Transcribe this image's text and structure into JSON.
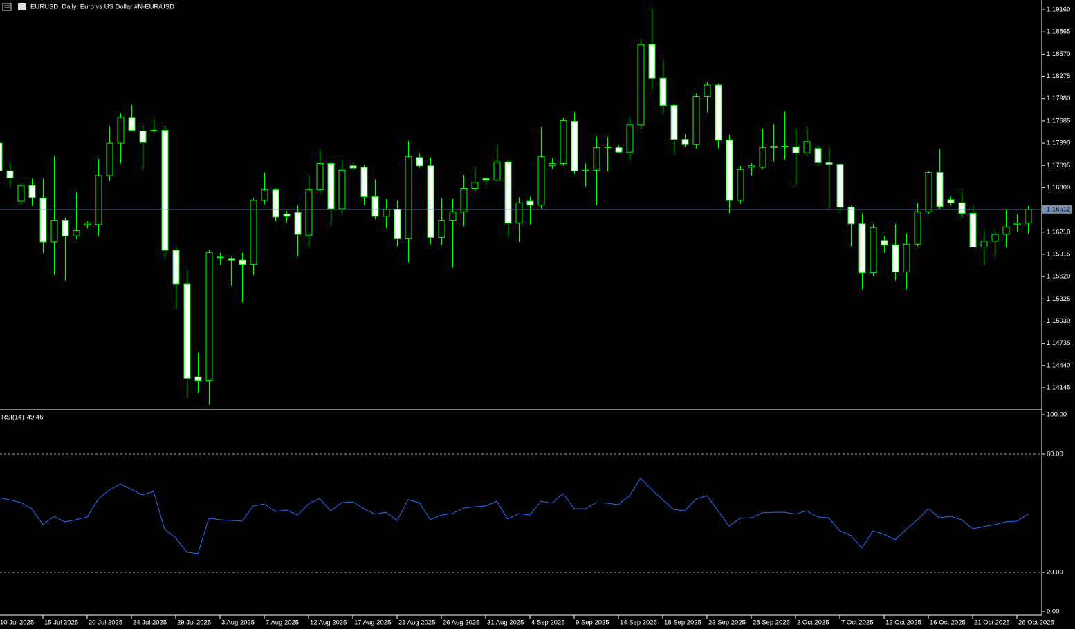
{
  "chart_data": [
    {
      "type": "candlestick",
      "title": "EURUSD, Daily:  Euro vs US Dollar #N-EUR/USD",
      "categories": [
        "10 Jul 2025",
        null,
        null,
        null,
        "15 Jul 2025",
        null,
        null,
        null,
        "20 Jul 2025",
        null,
        null,
        null,
        "24 Jul 2025",
        null,
        null,
        null,
        "29 Jul 2025",
        null,
        null,
        null,
        "3 Aug 2025",
        null,
        null,
        null,
        "7 Aug 2025",
        null,
        null,
        null,
        "12 Aug 2025",
        null,
        null,
        null,
        "17 Aug 2025",
        null,
        null,
        null,
        "21 Aug 2025",
        null,
        null,
        null,
        "26 Aug 2025",
        null,
        null,
        null,
        "31 Aug 2025",
        null,
        null,
        null,
        "4 Sep 2025",
        null,
        null,
        null,
        "9 Sep 2025",
        null,
        null,
        null,
        "14 Sep 2025",
        null,
        null,
        null,
        "18 Sep 2025",
        null,
        null,
        null,
        "23 Sep 2025",
        null,
        null,
        null,
        "28 Sep 2025",
        null,
        null,
        null,
        "2 Oct 2025",
        null,
        null,
        null,
        "7 Oct 2025",
        null,
        null,
        null,
        "12 Oct 2025",
        null,
        null,
        null,
        "16 Oct 2025",
        null,
        null,
        null,
        "21 Oct 2025",
        null,
        null,
        null,
        "26 Oct 2025",
        null
      ],
      "open": [
        1.1739,
        1.1702,
        1.1662,
        1.1683,
        1.1666,
        1.1608,
        1.1636,
        1.1616,
        1.1631,
        1.1631,
        1.1696,
        1.1739,
        1.1773,
        1.1755,
        1.1755,
        1.1756,
        1.1597,
        1.1552,
        1.1429,
        1.1424,
        1.1587,
        1.1586,
        1.1584,
        1.1578,
        1.1663,
        1.1677,
        1.1645,
        1.1647,
        1.1617,
        1.1677,
        1.1712,
        1.1652,
        1.1709,
        1.1707,
        1.1668,
        1.1642,
        1.1651,
        1.1612,
        1.172,
        1.1709,
        1.1614,
        1.1636,
        1.1648,
        1.1679,
        1.1692,
        1.169,
        1.1714,
        1.1633,
        1.1662,
        1.1657,
        1.1709,
        1.1712,
        1.1768,
        1.1702,
        1.1703,
        1.1733,
        1.1733,
        1.1727,
        1.1763,
        1.187,
        1.1825,
        1.1789,
        1.1744,
        1.1737,
        1.1801,
        1.1816,
        1.1743,
        1.1663,
        1.1707,
        1.1707,
        1.1733,
        1.1735,
        1.1734,
        1.1726,
        1.1732,
        1.1713,
        1.1711,
        1.1654,
        1.1632,
        1.1567,
        1.161,
        1.1604,
        1.1568,
        1.1605,
        1.1648,
        1.17,
        1.1664,
        1.166,
        1.1646,
        1.1601,
        1.1609,
        1.1618,
        1.1631,
        1.1633
      ],
      "high": [
        1.1745,
        1.1713,
        1.1686,
        1.1692,
        1.1692,
        1.1722,
        1.164,
        1.1674,
        1.1635,
        1.1718,
        1.1761,
        1.1779,
        1.179,
        1.1763,
        1.1771,
        1.1762,
        1.1601,
        1.1571,
        1.1461,
        1.1597,
        1.1594,
        1.1588,
        1.1594,
        1.1666,
        1.17,
        1.1679,
        1.1649,
        1.1657,
        1.1697,
        1.1731,
        1.1715,
        1.1717,
        1.1713,
        1.171,
        1.1691,
        1.1665,
        1.1663,
        1.1742,
        1.1725,
        1.172,
        1.1666,
        1.1665,
        1.1697,
        1.1708,
        1.1694,
        1.1737,
        1.1716,
        1.1667,
        1.1668,
        1.176,
        1.1719,
        1.1773,
        1.178,
        1.1712,
        1.1748,
        1.1747,
        1.1736,
        1.1773,
        1.1877,
        1.1919,
        1.1849,
        1.1791,
        1.1751,
        1.1805,
        1.182,
        1.1818,
        1.175,
        1.1709,
        1.1712,
        1.1758,
        1.1764,
        1.1781,
        1.1759,
        1.1761,
        1.1736,
        1.1734,
        1.1712,
        1.1657,
        1.1646,
        1.1632,
        1.1616,
        1.1632,
        1.1619,
        1.166,
        1.1702,
        1.1731,
        1.1668,
        1.1674,
        1.1657,
        1.1623,
        1.1623,
        1.1651,
        1.1645,
        1.1656
      ],
      "low": [
        1.17,
        1.1681,
        1.1658,
        1.1656,
        1.1593,
        1.1564,
        1.1557,
        1.1612,
        1.1626,
        1.1616,
        1.1689,
        1.1712,
        1.1755,
        1.1704,
        1.1753,
        1.1586,
        1.1521,
        1.1402,
        1.1408,
        1.1392,
        1.1577,
        1.155,
        1.1528,
        1.1564,
        1.1658,
        1.1635,
        1.1634,
        1.1589,
        1.1601,
        1.1672,
        1.1631,
        1.1645,
        1.1703,
        1.1657,
        1.1638,
        1.1626,
        1.1602,
        1.1581,
        1.1707,
        1.1605,
        1.1604,
        1.1574,
        1.1629,
        1.1674,
        1.1683,
        1.1689,
        1.1614,
        1.1608,
        1.1631,
        1.1652,
        1.1705,
        1.1709,
        1.1698,
        1.1682,
        1.1657,
        1.1701,
        1.1726,
        1.1716,
        1.1757,
        1.181,
        1.1778,
        1.1725,
        1.1734,
        1.1732,
        1.178,
        1.1732,
        1.1646,
        1.1659,
        1.1696,
        1.1705,
        1.1715,
        1.1717,
        1.1684,
        1.1723,
        1.1709,
        1.1653,
        1.1648,
        1.1602,
        1.1545,
        1.1562,
        1.1594,
        1.1557,
        1.1545,
        1.1602,
        1.1645,
        1.1652,
        1.1657,
        1.164,
        1.1601,
        1.1578,
        1.1588,
        1.1601,
        1.1621,
        1.1619
      ],
      "close": [
        1.1702,
        1.1693,
        1.1683,
        1.1667,
        1.1608,
        1.1636,
        1.1616,
        1.1623,
        1.1633,
        1.1696,
        1.1739,
        1.1773,
        1.1756,
        1.174,
        1.1756,
        1.1597,
        1.1552,
        1.1427,
        1.1424,
        1.1594,
        1.1588,
        1.1584,
        1.1578,
        1.1663,
        1.1677,
        1.1641,
        1.1642,
        1.1618,
        1.1677,
        1.1712,
        1.1652,
        1.1703,
        1.1706,
        1.1668,
        1.1642,
        1.1651,
        1.1612,
        1.1721,
        1.1709,
        1.1614,
        1.1636,
        1.1648,
        1.1679,
        1.1687,
        1.169,
        1.1714,
        1.1633,
        1.166,
        1.1657,
        1.1721,
        1.1712,
        1.1769,
        1.1702,
        1.1703,
        1.1733,
        1.1734,
        1.1727,
        1.1763,
        1.187,
        1.1825,
        1.1789,
        1.1744,
        1.1737,
        1.1801,
        1.1816,
        1.1743,
        1.1663,
        1.1704,
        1.1709,
        1.1733,
        1.1735,
        1.1734,
        1.1726,
        1.1741,
        1.1713,
        1.1711,
        1.1654,
        1.1632,
        1.1567,
        1.1627,
        1.1604,
        1.1568,
        1.1605,
        1.1648,
        1.17,
        1.1655,
        1.166,
        1.1646,
        1.1601,
        1.1609,
        1.1618,
        1.1628,
        1.1633,
        1.16512
      ],
      "up_color": "#000000",
      "down_color": "#ffffff",
      "wick_color": "#00ff00",
      "ylim": [
        1.1387,
        1.1927
      ],
      "yticks": [
        {
          "value": 1.1916,
          "label": "1.19160"
        },
        1.18865,
        {
          "value": 1.1857,
          "label": "1.18570"
        },
        1.18275,
        {
          "value": 1.1798,
          "label": "1.17980"
        },
        1.17685,
        {
          "value": 1.1739,
          "label": "1.17390"
        },
        1.17095,
        {
          "value": 1.168,
          "label": "1.16800"
        },
        {
          "value": 1.1621,
          "label": "1.16210"
        },
        1.15915,
        {
          "value": 1.1562,
          "label": "1.15620"
        },
        1.15325,
        {
          "value": 1.1503,
          "label": "1.15030"
        },
        1.14735,
        {
          "value": 1.1444,
          "label": "1.14440"
        },
        1.14145
      ],
      "price_line_color": "#7b8fb3"
    },
    {
      "type": "line",
      "title": "RSI(14)",
      "color": "#1e6fff",
      "values": [
        57.9,
        56.8,
        55.4,
        52.3,
        44.2,
        48.4,
        45.6,
        46.7,
        48.1,
        57.2,
        61.8,
        64.9,
        62.1,
        59.3,
        61.1,
        41.8,
        37.5,
        30.2,
        29.5,
        47.4,
        46.7,
        46.3,
        46.0,
        53.7,
        54.7,
        50.9,
        51.6,
        49.1,
        54.7,
        57.5,
        51.2,
        55.4,
        55.8,
        52.3,
        49.5,
        50.5,
        46.3,
        56.8,
        55.4,
        46.7,
        49.1,
        49.8,
        52.6,
        53.3,
        53.7,
        56.1,
        47.0,
        49.8,
        49.1,
        56.1,
        55.1,
        60.0,
        52.3,
        52.3,
        55.4,
        55.1,
        54.4,
        58.9,
        67.7,
        62.1,
        56.8,
        51.9,
        51.2,
        57.2,
        58.9,
        51.2,
        43.5,
        47.4,
        47.7,
        50.2,
        50.5,
        50.5,
        49.5,
        51.2,
        48.1,
        47.7,
        41.1,
        38.6,
        32.3,
        41.1,
        39.3,
        36.5,
        41.8,
        46.7,
        52.3,
        47.7,
        48.4,
        46.7,
        42.1,
        43.2,
        44.2,
        45.6,
        46.0,
        49.46
      ],
      "ylim": [
        0,
        100
      ],
      "yticks": [
        {
          "value": 100,
          "label": "100.00"
        },
        {
          "value": 80,
          "label": "80.00"
        },
        {
          "value": 20,
          "label": "20.00"
        },
        {
          "value": 0,
          "label": "0.00"
        }
      ]
    }
  ]
}
